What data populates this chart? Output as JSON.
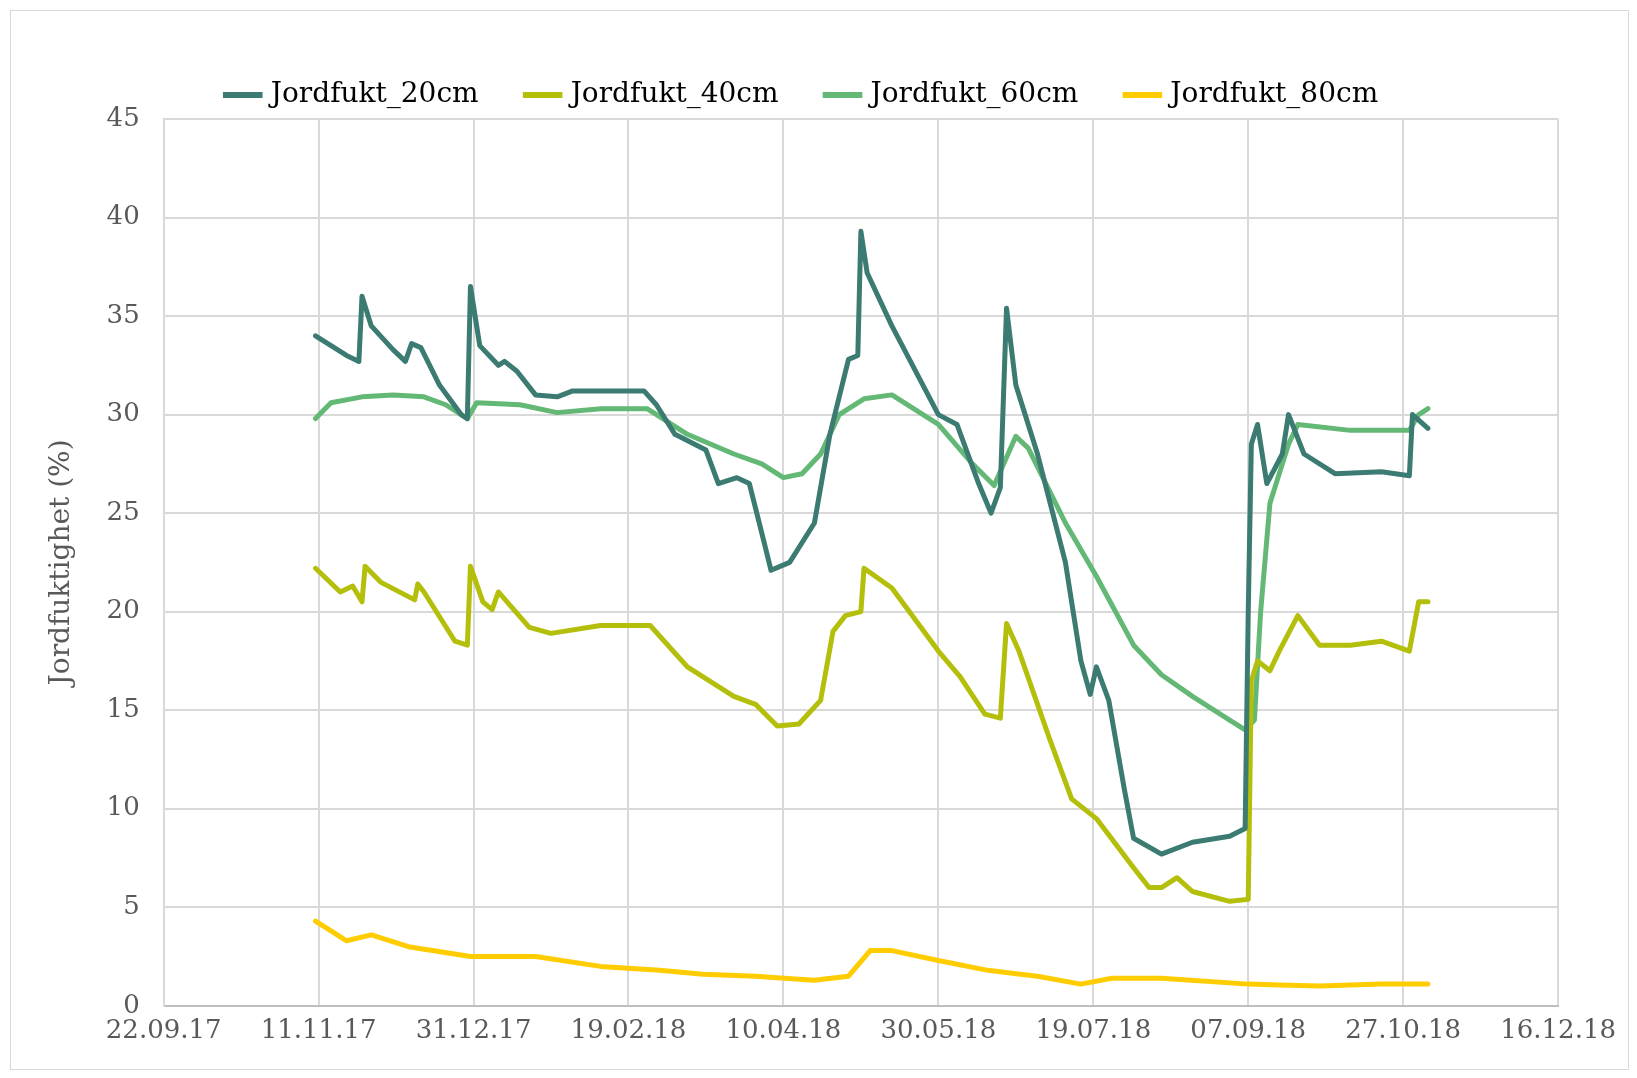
{
  "chart_data": {
    "type": "line",
    "ylabel": "Jordfuktighet (%)",
    "legend": "top",
    "grid": true,
    "marker": "none",
    "line_style": "solid",
    "xlim": [
      "2017-09-22",
      "2018-12-16"
    ],
    "xticks": [
      {
        "value": "2017-09-22",
        "label": "22.09.17"
      },
      {
        "value": "2017-11-11",
        "label": "11.11.17"
      },
      {
        "value": "2017-12-31",
        "label": "31.12.17"
      },
      {
        "value": "2018-02-19",
        "label": "19.02.18"
      },
      {
        "value": "2018-04-10",
        "label": "10.04.18"
      },
      {
        "value": "2018-05-30",
        "label": "30.05.18"
      },
      {
        "value": "2018-07-19",
        "label": "19.07.18"
      },
      {
        "value": "2018-09-07",
        "label": "07.09.18"
      },
      {
        "value": "2018-10-27",
        "label": "27.10.18"
      },
      {
        "value": "2018-12-16",
        "label": "16.12.18"
      }
    ],
    "ylim": [
      0,
      45
    ],
    "yticks": [
      0,
      5,
      10,
      15,
      20,
      25,
      30,
      35,
      40,
      45
    ],
    "series": [
      {
        "name": "Jordfukt_20cm",
        "color": "#3b7b72",
        "x": [
          "2017-11-10",
          "2017-11-15",
          "2017-11-20",
          "2017-11-24",
          "2017-11-25",
          "2017-11-28",
          "2017-12-05",
          "2017-12-09",
          "2017-12-11",
          "2017-12-14",
          "2017-12-20",
          "2017-12-27",
          "2017-12-29",
          "2017-12-30",
          "2018-01-02",
          "2018-01-08",
          "2018-01-10",
          "2018-01-14",
          "2018-01-20",
          "2018-01-27",
          "2018-02-01",
          "2018-02-19",
          "2018-02-24",
          "2018-02-28",
          "2018-03-06",
          "2018-03-16",
          "2018-03-20",
          "2018-03-26",
          "2018-03-30",
          "2018-04-03",
          "2018-04-06",
          "2018-04-12",
          "2018-04-20",
          "2018-04-25",
          "2018-05-01",
          "2018-05-04",
          "2018-05-05",
          "2018-05-07",
          "2018-05-15",
          "2018-05-30",
          "2018-06-05",
          "2018-06-12",
          "2018-06-16",
          "2018-06-19",
          "2018-06-21",
          "2018-06-24",
          "2018-07-01",
          "2018-07-10",
          "2018-07-15",
          "2018-07-18",
          "2018-07-20",
          "2018-07-24",
          "2018-07-29",
          "2018-08-01",
          "2018-08-10",
          "2018-08-20",
          "2018-09-01",
          "2018-09-06",
          "2018-09-07",
          "2018-09-08",
          "2018-09-10",
          "2018-09-13",
          "2018-09-18",
          "2018-09-20",
          "2018-09-25",
          "2018-10-05",
          "2018-10-20",
          "2018-10-29",
          "2018-10-30",
          "2018-11-04"
        ],
        "values": [
          34,
          33.5,
          33,
          32.7,
          36,
          34.5,
          33.3,
          32.7,
          33.6,
          33.4,
          31.5,
          30,
          29.8,
          36.5,
          33.5,
          32.5,
          32.7,
          32.2,
          31,
          30.9,
          31.2,
          31.2,
          31.2,
          30.5,
          29,
          28.2,
          26.5,
          26.8,
          26.5,
          24,
          22.1,
          22.5,
          24.5,
          29,
          32.8,
          33,
          39.3,
          37.2,
          34.5,
          30,
          29.5,
          26.5,
          25,
          26.3,
          35.4,
          31.5,
          28,
          22.5,
          17.5,
          15.8,
          17.2,
          15.5,
          11,
          8.5,
          7.7,
          8.3,
          8.6,
          9,
          20,
          28.5,
          29.5,
          26.5,
          28,
          30,
          28,
          27,
          27.1,
          26.9,
          30,
          29.3
        ]
      },
      {
        "name": "Jordfukt_40cm",
        "color": "#b3bf0b",
        "x": [
          "2017-11-10",
          "2017-11-18",
          "2017-11-22",
          "2017-11-25",
          "2017-11-26",
          "2017-12-01",
          "2017-12-12",
          "2017-12-13",
          "2017-12-15",
          "2017-12-25",
          "2017-12-29",
          "2017-12-30",
          "2018-01-03",
          "2018-01-06",
          "2018-01-08",
          "2018-01-18",
          "2018-01-25",
          "2018-02-10",
          "2018-02-26",
          "2018-03-10",
          "2018-03-25",
          "2018-04-01",
          "2018-04-08",
          "2018-04-15",
          "2018-04-22",
          "2018-04-26",
          "2018-04-30",
          "2018-05-05",
          "2018-05-06",
          "2018-05-15",
          "2018-05-30",
          "2018-06-06",
          "2018-06-14",
          "2018-06-19",
          "2018-06-21",
          "2018-06-25",
          "2018-07-05",
          "2018-07-12",
          "2018-07-20",
          "2018-08-01",
          "2018-08-06",
          "2018-08-10",
          "2018-08-15",
          "2018-08-20",
          "2018-09-01",
          "2018-09-07",
          "2018-09-08",
          "2018-09-10",
          "2018-09-14",
          "2018-09-17",
          "2018-09-23",
          "2018-09-30",
          "2018-10-10",
          "2018-10-20",
          "2018-10-29",
          "2018-11-01",
          "2018-11-04"
        ],
        "values": [
          22.2,
          21,
          21.3,
          20.5,
          22.3,
          21.5,
          20.6,
          21.4,
          21,
          18.5,
          18.3,
          22.3,
          20.5,
          20.1,
          21,
          19.2,
          18.9,
          19.3,
          19.3,
          17.2,
          15.7,
          15.3,
          14.2,
          14.3,
          15.5,
          19,
          19.8,
          20,
          22.2,
          21.2,
          18,
          16.7,
          14.8,
          14.6,
          19.4,
          18,
          13.5,
          10.5,
          9.5,
          7,
          6,
          6,
          6.5,
          5.8,
          5.3,
          5.4,
          16.5,
          17.5,
          17,
          18,
          19.8,
          18.3,
          18.3,
          18.5,
          18,
          20.5,
          20.5
        ]
      },
      {
        "name": "Jordfukt_60cm",
        "color": "#64b875",
        "x": [
          "2017-11-10",
          "2017-11-15",
          "2017-11-25",
          "2017-12-05",
          "2017-12-15",
          "2017-12-22",
          "2017-12-29",
          "2018-01-01",
          "2018-01-15",
          "2018-01-27",
          "2018-02-10",
          "2018-02-25",
          "2018-03-10",
          "2018-03-25",
          "2018-04-03",
          "2018-04-10",
          "2018-04-16",
          "2018-04-22",
          "2018-04-28",
          "2018-05-06",
          "2018-05-15",
          "2018-05-30",
          "2018-06-10",
          "2018-06-17",
          "2018-06-24",
          "2018-06-28",
          "2018-07-10",
          "2018-07-20",
          "2018-08-01",
          "2018-08-10",
          "2018-08-20",
          "2018-09-01",
          "2018-09-06",
          "2018-09-09",
          "2018-09-11",
          "2018-09-14",
          "2018-09-20",
          "2018-09-23",
          "2018-10-10",
          "2018-10-29",
          "2018-11-01",
          "2018-11-04"
        ],
        "values": [
          29.8,
          30.6,
          30.9,
          31,
          30.9,
          30.5,
          29.8,
          30.6,
          30.5,
          30.1,
          30.3,
          30.3,
          29,
          28,
          27.5,
          26.8,
          27,
          28,
          30,
          30.8,
          31,
          29.5,
          27.5,
          26.4,
          28.9,
          28.3,
          24.5,
          21.8,
          18.3,
          16.8,
          15.7,
          14.5,
          14,
          14.5,
          20,
          25.5,
          28.5,
          29.5,
          29.2,
          29.2,
          30,
          30.3
        ]
      },
      {
        "name": "Jordfukt_80cm",
        "color": "#ffcc00",
        "x": [
          "2017-11-10",
          "2017-11-15",
          "2017-11-20",
          "2017-11-28",
          "2017-12-10",
          "2017-12-30",
          "2018-01-20",
          "2018-02-10",
          "2018-03-01",
          "2018-03-15",
          "2018-04-01",
          "2018-04-20",
          "2018-05-01",
          "2018-05-08",
          "2018-05-15",
          "2018-05-30",
          "2018-06-15",
          "2018-07-01",
          "2018-07-15",
          "2018-07-25",
          "2018-08-10",
          "2018-09-07",
          "2018-09-30",
          "2018-10-20",
          "2018-11-04"
        ],
        "values": [
          4.3,
          3.8,
          3.3,
          3.6,
          3,
          2.5,
          2.5,
          2,
          1.8,
          1.6,
          1.5,
          1.3,
          1.5,
          2.8,
          2.8,
          2.3,
          1.8,
          1.5,
          1.1,
          1.4,
          1.4,
          1.1,
          1,
          1.1,
          1.1
        ]
      }
    ]
  }
}
